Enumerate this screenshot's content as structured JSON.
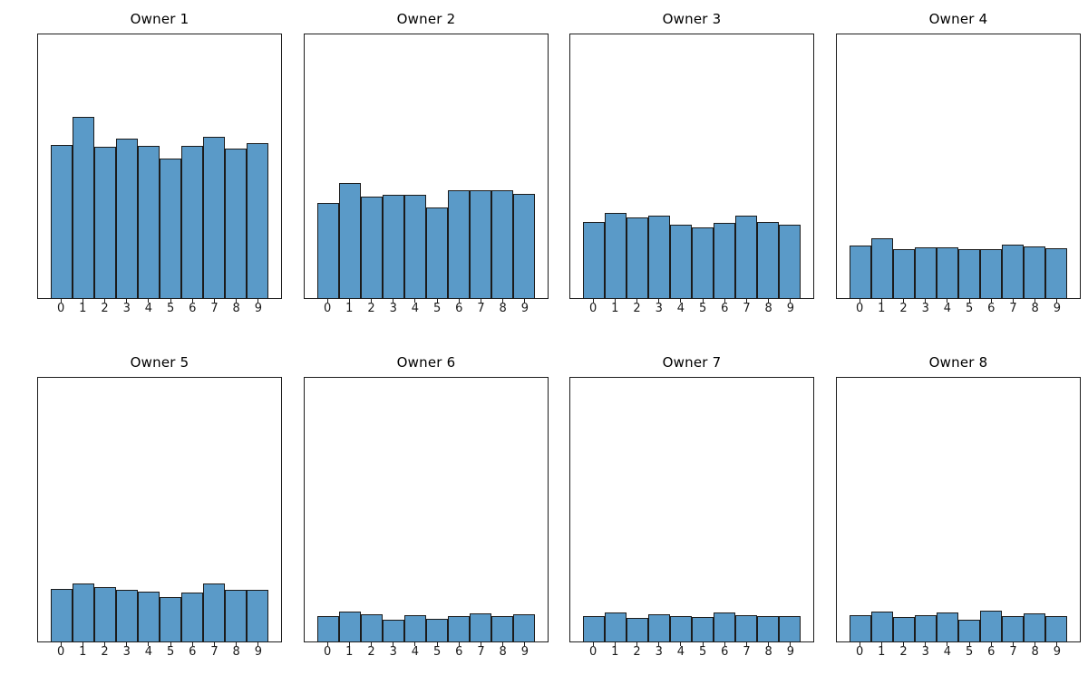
{
  "figure": {
    "background": "#ffffff",
    "bar_fill": "#5a9ac8",
    "bar_edge": "#1b1b1b",
    "axis_color": "#1c1c1c",
    "tick_label_color": "#1a1a1a",
    "title_color": "#000000",
    "rows": 2,
    "cols": 4
  },
  "chart_data": [
    {
      "type": "bar",
      "title": "Owner 1",
      "categories": [
        "0",
        "1",
        "2",
        "3",
        "4",
        "5",
        "6",
        "7",
        "8",
        "9"
      ],
      "values": [
        0.581,
        0.687,
        0.574,
        0.605,
        0.577,
        0.529,
        0.577,
        0.612,
        0.567,
        0.588
      ],
      "xlabel": "",
      "ylabel": "",
      "ylim": [
        0,
        1
      ],
      "grid": false
    },
    {
      "type": "bar",
      "title": "Owner 2",
      "categories": [
        "0",
        "1",
        "2",
        "3",
        "4",
        "5",
        "6",
        "7",
        "8",
        "9"
      ],
      "values": [
        0.361,
        0.436,
        0.385,
        0.392,
        0.392,
        0.344,
        0.409,
        0.409,
        0.409,
        0.395
      ],
      "xlabel": "",
      "ylabel": "",
      "ylim": [
        0,
        1
      ],
      "grid": false
    },
    {
      "type": "bar",
      "title": "Owner 3",
      "categories": [
        "0",
        "1",
        "2",
        "3",
        "4",
        "5",
        "6",
        "7",
        "8",
        "9"
      ],
      "values": [
        0.289,
        0.323,
        0.306,
        0.313,
        0.278,
        0.268,
        0.285,
        0.313,
        0.289,
        0.278
      ],
      "xlabel": "",
      "ylabel": "",
      "ylim": [
        0,
        1
      ],
      "grid": false
    },
    {
      "type": "bar",
      "title": "Owner 4",
      "categories": [
        "0",
        "1",
        "2",
        "3",
        "4",
        "5",
        "6",
        "7",
        "8",
        "9"
      ],
      "values": [
        0.199,
        0.227,
        0.186,
        0.192,
        0.192,
        0.186,
        0.186,
        0.203,
        0.196,
        0.189
      ],
      "xlabel": "",
      "ylabel": "",
      "ylim": [
        0,
        1
      ],
      "grid": false
    },
    {
      "type": "bar",
      "title": "Owner 5",
      "categories": [
        "0",
        "1",
        "2",
        "3",
        "4",
        "5",
        "6",
        "7",
        "8",
        "9"
      ],
      "values": [
        0.2,
        0.221,
        0.207,
        0.197,
        0.19,
        0.169,
        0.186,
        0.221,
        0.197,
        0.197
      ],
      "xlabel": "",
      "ylabel": "",
      "ylim": [
        0,
        1
      ],
      "grid": false
    },
    {
      "type": "bar",
      "title": "Owner 6",
      "categories": [
        "0",
        "1",
        "2",
        "3",
        "4",
        "5",
        "6",
        "7",
        "8",
        "9"
      ],
      "values": [
        0.097,
        0.114,
        0.103,
        0.083,
        0.1,
        0.086,
        0.097,
        0.107,
        0.097,
        0.103
      ],
      "xlabel": "",
      "ylabel": "",
      "ylim": [
        0,
        1
      ],
      "grid": false
    },
    {
      "type": "bar",
      "title": "Owner 7",
      "categories": [
        "0",
        "1",
        "2",
        "3",
        "4",
        "5",
        "6",
        "7",
        "8",
        "9"
      ],
      "values": [
        0.097,
        0.11,
        0.09,
        0.103,
        0.097,
        0.093,
        0.11,
        0.1,
        0.097,
        0.097
      ],
      "xlabel": "",
      "ylabel": "",
      "ylim": [
        0,
        1
      ],
      "grid": false
    },
    {
      "type": "bar",
      "title": "Owner 8",
      "categories": [
        "0",
        "1",
        "2",
        "3",
        "4",
        "5",
        "6",
        "7",
        "8",
        "9"
      ],
      "values": [
        0.1,
        0.114,
        0.093,
        0.1,
        0.11,
        0.083,
        0.117,
        0.097,
        0.107,
        0.097
      ],
      "xlabel": "",
      "ylabel": "",
      "ylim": [
        0,
        1
      ],
      "grid": false
    }
  ]
}
